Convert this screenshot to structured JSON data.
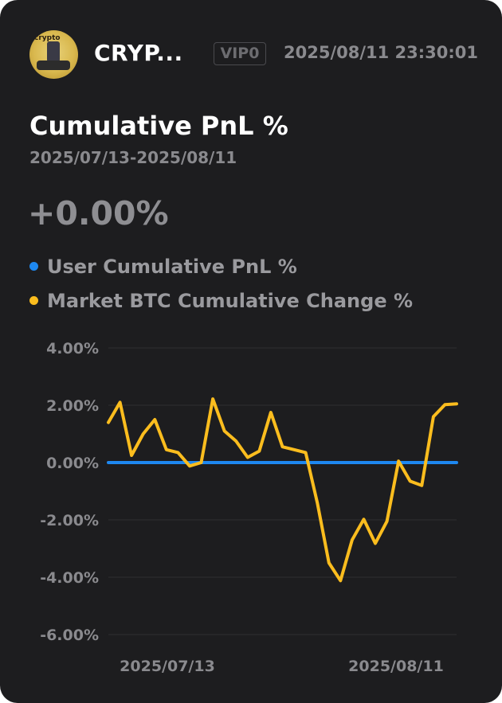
{
  "header": {
    "username": "CRYP...",
    "vip_badge": "VIP0",
    "timestamp": "2025/08/11 23:30:01",
    "avatar_text": "crypto"
  },
  "summary": {
    "title": "Cumulative PnL %",
    "date_range": "2025/07/13-2025/08/11",
    "pnl_value": "+0.00%"
  },
  "colors": {
    "background": "#1d1d1f",
    "user_series": "#1e88f0",
    "market_series": "#fbbd1e",
    "axis_text": "#8a8a8e"
  },
  "chart_data": {
    "type": "line",
    "title": "",
    "xlabel": "",
    "ylabel": "",
    "x_tick_labels": [
      "2025/07/13",
      "2025/08/11"
    ],
    "y_tick_labels": [
      "4.00%",
      "2.00%",
      "0.00%",
      "-2.00%",
      "-4.00%",
      "-6.00%"
    ],
    "y_ticks": [
      4,
      2,
      0,
      -2,
      -4,
      -6
    ],
    "ylim": [
      -6,
      4
    ],
    "x_range": [
      "2025/07/12",
      "2025/08/11"
    ],
    "x": [
      "2025/07/12",
      "2025/07/13",
      "2025/07/14",
      "2025/07/15",
      "2025/07/16",
      "2025/07/17",
      "2025/07/18",
      "2025/07/19",
      "2025/07/20",
      "2025/07/21",
      "2025/07/22",
      "2025/07/23",
      "2025/07/24",
      "2025/07/25",
      "2025/07/26",
      "2025/07/27",
      "2025/07/28",
      "2025/07/29",
      "2025/07/30",
      "2025/07/31",
      "2025/08/01",
      "2025/08/02",
      "2025/08/03",
      "2025/08/04",
      "2025/08/05",
      "2025/08/06",
      "2025/08/07",
      "2025/08/08",
      "2025/08/09",
      "2025/08/10",
      "2025/08/11"
    ],
    "grid": true,
    "legend_position": "top",
    "series": [
      {
        "name": "User Cumulative PnL %",
        "color": "#1e88f0",
        "values": [
          0,
          0,
          0,
          0,
          0,
          0,
          0,
          0,
          0,
          0,
          0,
          0,
          0,
          0,
          0,
          0,
          0,
          0,
          0,
          0,
          0,
          0,
          0,
          0,
          0,
          0,
          0,
          0,
          0,
          0,
          0
        ]
      },
      {
        "name": "Market BTC Cumulative Change %",
        "color": "#fbbd1e",
        "values": [
          1.4,
          2.1,
          0.25,
          1.0,
          1.5,
          0.45,
          0.35,
          -0.12,
          0.0,
          2.22,
          1.1,
          0.75,
          0.18,
          0.4,
          1.75,
          0.55,
          0.45,
          0.35,
          -1.4,
          -3.5,
          -4.12,
          -2.7,
          -1.98,
          -2.82,
          -2.05,
          0.05,
          -0.65,
          -0.8,
          1.6,
          2.02,
          2.05
        ]
      }
    ]
  }
}
